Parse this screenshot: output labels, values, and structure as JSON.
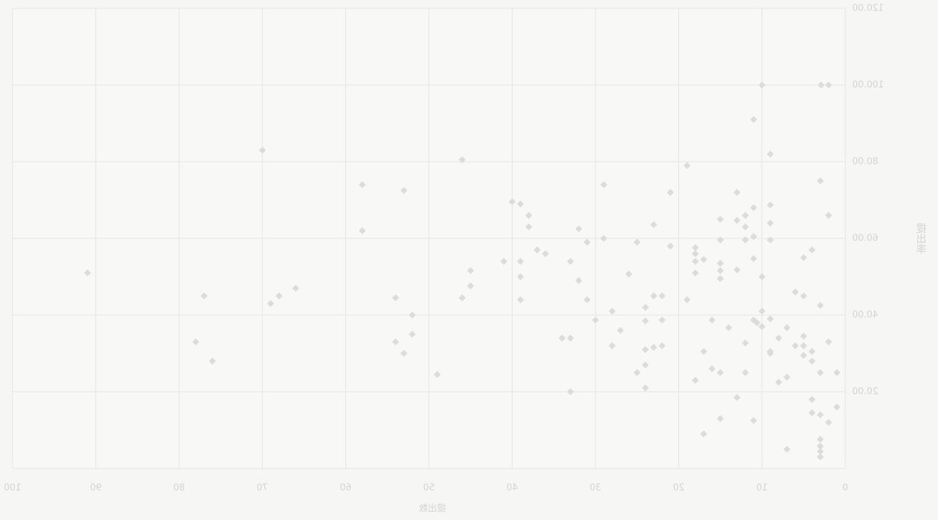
{
  "chart_data": {
    "type": "scatter",
    "xlabel": "提出数",
    "ylabel": "提出率",
    "color": "#dcdcdc",
    "grid": true,
    "xlim": [
      0,
      100
    ],
    "xticks": [
      0,
      10,
      20,
      30,
      40,
      50,
      60,
      70,
      80,
      90,
      100
    ],
    "ylim": [
      0,
      120
    ],
    "yticks": [
      {
        "value": 20,
        "label": "20.00"
      },
      {
        "value": 40,
        "label": "40.00"
      },
      {
        "value": 60,
        "label": "60.00"
      },
      {
        "value": 80,
        "label": "80.00"
      },
      {
        "value": 100,
        "label": "100.00"
      },
      {
        "value": 120,
        "label": "120.00"
      }
    ],
    "x": [
      2.9,
      2,
      10,
      11,
      9,
      19,
      3,
      2,
      70,
      46,
      58,
      53,
      58,
      91,
      77,
      69,
      68,
      66,
      78,
      76,
      54,
      52,
      54,
      53,
      52,
      49,
      46,
      45,
      45,
      41,
      40,
      39,
      38,
      38,
      37,
      36,
      39,
      39,
      39,
      33,
      32,
      31,
      32,
      31,
      34,
      33,
      33,
      29,
      29,
      30,
      28,
      27,
      28,
      26,
      25,
      23,
      21,
      21,
      24,
      23,
      22,
      24,
      22,
      24,
      23,
      22,
      25,
      24,
      24,
      19,
      18,
      18,
      18,
      18,
      17,
      16,
      17,
      16,
      18,
      15,
      15,
      15,
      15,
      15,
      15,
      14,
      13,
      13,
      13,
      12,
      12,
      12,
      11,
      11,
      11,
      12,
      12,
      11,
      10.6,
      10,
      10,
      10,
      9,
      9,
      9,
      9,
      9,
      9,
      8,
      7,
      8,
      7,
      13,
      15,
      17,
      11,
      7,
      6,
      5,
      5,
      4,
      6,
      5,
      5,
      4,
      5,
      4,
      3,
      2,
      3,
      1,
      4,
      4,
      3,
      2,
      1,
      3,
      3,
      3,
      3
    ],
    "values": [
      100,
      100,
      100,
      91,
      82,
      79,
      75,
      66,
      83,
      80.5,
      74,
      72.5,
      62,
      51,
      45,
      43,
      45,
      47,
      33,
      28,
      44.5,
      40,
      33,
      30,
      35,
      24.5,
      44.5,
      47.6,
      51.6,
      54,
      69.6,
      69,
      66,
      63,
      57,
      56,
      54,
      50,
      44,
      54,
      62.5,
      59,
      49,
      44,
      34,
      34,
      20,
      74,
      60,
      38.7,
      41,
      36,
      32,
      50.7,
      59,
      63.6,
      72,
      58,
      42,
      45,
      45,
      38.5,
      38.7,
      31,
      31.6,
      32,
      25,
      27,
      21,
      44,
      57.6,
      56,
      54,
      51,
      54.5,
      38.7,
      30.5,
      26,
      23,
      25,
      65,
      59.6,
      53.5,
      51.6,
      49.5,
      36.7,
      72,
      64.7,
      51.8,
      66,
      63,
      59.6,
      68,
      60.5,
      54.7,
      32.7,
      25,
      38.7,
      38,
      50,
      41,
      37,
      68.7,
      64,
      59.6,
      39,
      30.5,
      30,
      34,
      36.7,
      22.5,
      23.8,
      18.5,
      13,
      9,
      12.5,
      5,
      46,
      45,
      55,
      57,
      32,
      34.5,
      32,
      30.5,
      29.5,
      28,
      42.5,
      33,
      25,
      25,
      18,
      14.5,
      14,
      12,
      16,
      7.6,
      5.8,
      4.4,
      3
    ]
  }
}
